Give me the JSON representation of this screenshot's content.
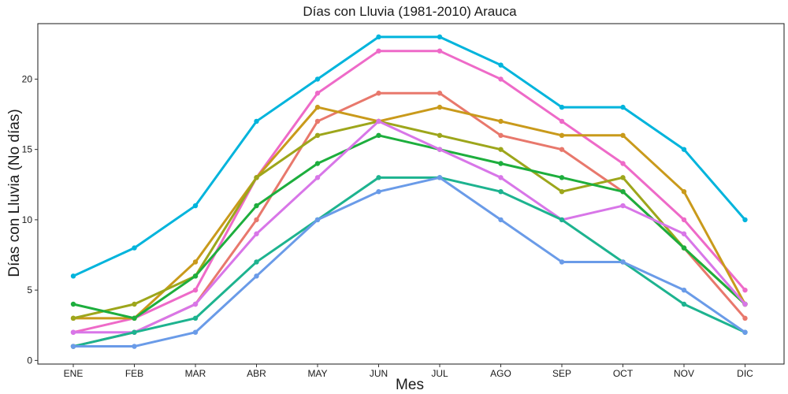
{
  "chart_data": {
    "type": "line",
    "title": "Días con Lluvia (1981-2010)  Arauca",
    "xlabel": "Mes",
    "ylabel": "Días con Lluvia (No días)",
    "categories": [
      "ENE",
      "FEB",
      "MAR",
      "ABR",
      "MAY",
      "JUN",
      "JUL",
      "AGO",
      "SEP",
      "OCT",
      "NOV",
      "DIC"
    ],
    "yticks": [
      0,
      5,
      10,
      15,
      20
    ],
    "ylim": [
      0,
      24
    ],
    "grid": false,
    "legend": "none",
    "series": [
      {
        "color": "#00B4DC",
        "values": [
          6,
          8,
          11,
          17,
          20,
          23,
          23,
          21,
          18,
          18,
          15,
          10
        ]
      },
      {
        "color": "#EE6AC8",
        "values": [
          2,
          3,
          5,
          13,
          19,
          22,
          22,
          20,
          17,
          14,
          10,
          5
        ]
      },
      {
        "color": "#E8786C",
        "values": [
          1,
          2,
          4,
          10,
          17,
          19,
          19,
          16,
          15,
          12,
          8,
          3
        ]
      },
      {
        "color": "#C99A1B",
        "values": [
          3,
          3,
          7,
          13,
          18,
          17,
          18,
          17,
          16,
          16,
          12,
          4
        ]
      },
      {
        "color": "#9DA61B",
        "values": [
          3,
          4,
          6,
          13,
          16,
          17,
          16,
          15,
          12,
          13,
          8,
          4
        ]
      },
      {
        "color": "#1DAE3D",
        "values": [
          4,
          3,
          6,
          11,
          14,
          16,
          15,
          14,
          13,
          12,
          8,
          4
        ]
      },
      {
        "color": "#D876E8",
        "values": [
          2,
          2,
          4,
          9,
          13,
          17,
          15,
          13,
          10,
          11,
          9,
          4
        ]
      },
      {
        "color": "#1DB38F",
        "values": [
          1,
          2,
          3,
          7,
          10,
          13,
          13,
          12,
          10,
          7,
          4,
          2
        ]
      },
      {
        "color": "#6A9BE8",
        "values": [
          1,
          1,
          2,
          6,
          10,
          12,
          13,
          10,
          7,
          7,
          5,
          2
        ]
      }
    ]
  }
}
